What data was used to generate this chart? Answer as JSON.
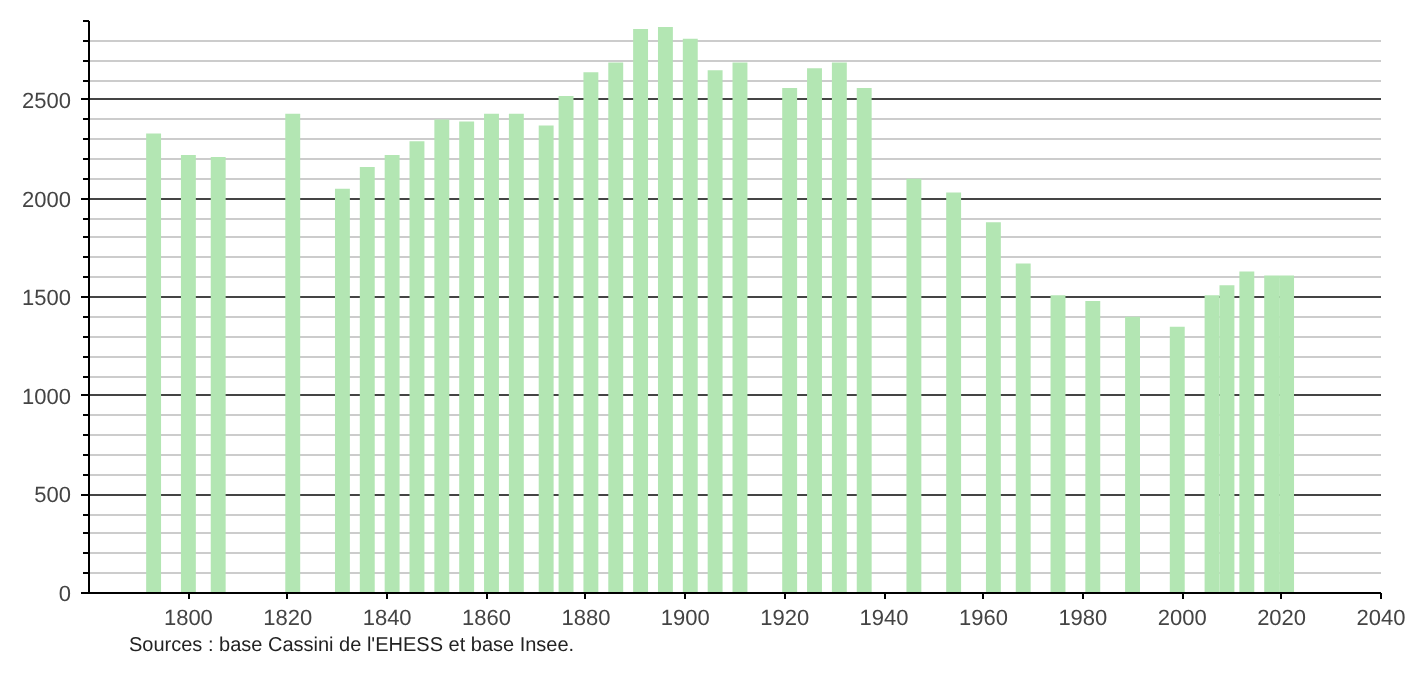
{
  "chart_data": {
    "type": "bar",
    "x": [
      1793,
      1800,
      1806,
      1821,
      1831,
      1836,
      1841,
      1846,
      1851,
      1856,
      1861,
      1866,
      1872,
      1876,
      1881,
      1886,
      1891,
      1896,
      1901,
      1906,
      1911,
      1921,
      1926,
      1931,
      1936,
      1946,
      1954,
      1962,
      1968,
      1975,
      1982,
      1990,
      1999,
      2006,
      2009,
      2013,
      2018,
      2021
    ],
    "values": [
      2330,
      2220,
      2210,
      2430,
      2050,
      2160,
      2220,
      2290,
      2400,
      2390,
      2430,
      2430,
      2370,
      2520,
      2640,
      2690,
      2860,
      2870,
      2810,
      2650,
      2690,
      2560,
      2660,
      2690,
      2560,
      2100,
      2030,
      1880,
      1670,
      1510,
      1480,
      1400,
      1350,
      1510,
      1560,
      1630,
      1610,
      1610
    ],
    "color": "#b3e6b3",
    "xlim": [
      1780,
      2040
    ],
    "xticks": [
      1800,
      1820,
      1840,
      1860,
      1880,
      1900,
      1920,
      1940,
      1960,
      1980,
      2000,
      2020,
      2040
    ],
    "ylim": [
      0,
      2900
    ],
    "yticks": [
      0,
      500,
      1000,
      1500,
      2000,
      2500
    ],
    "grid": "y",
    "annotations": [
      "Sources : base Cassini de l'EHESS et base Insee."
    ]
  }
}
